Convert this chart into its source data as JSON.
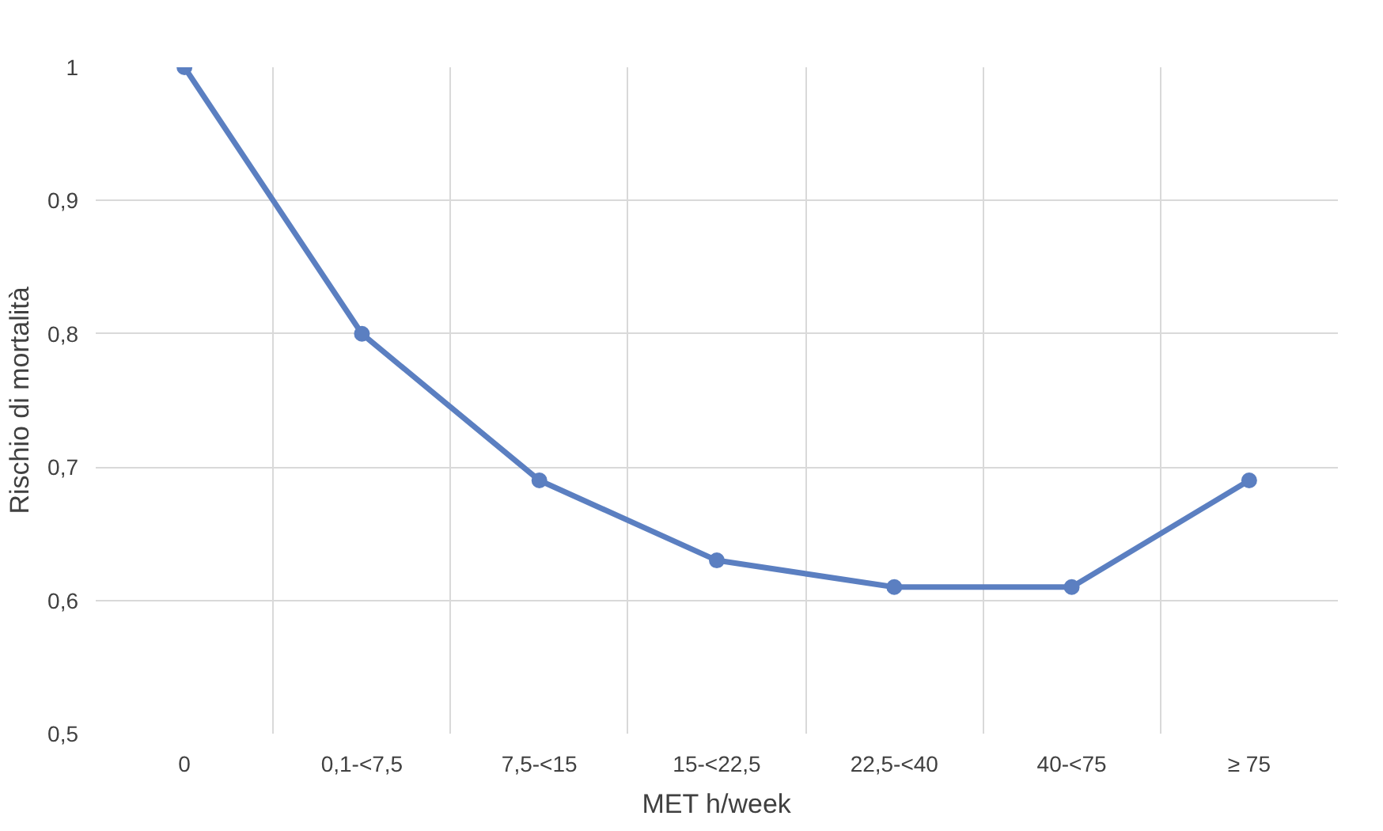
{
  "chart_data": {
    "type": "line",
    "xlabel": "MET h/week",
    "ylabel": "Rischio di mortalità",
    "categories": [
      "0",
      "0,1-<7,5",
      "7,5-<15",
      "15-<22,5",
      "22,5-<40",
      "40-<75",
      "≥ 75"
    ],
    "series": [
      {
        "color": "#5b7fc1",
        "values": [
          1,
          0.8,
          0.69,
          0.63,
          0.61,
          0.61,
          0.69
        ]
      }
    ],
    "ylim": [
      0.5,
      1
    ],
    "yticks": [
      {
        "value": 0.5,
        "label": "0,5"
      },
      {
        "value": 0.6,
        "label": "0,6"
      },
      {
        "value": 0.7,
        "label": "0,7"
      },
      {
        "value": 0.8,
        "label": "0,8"
      },
      {
        "value": 0.9,
        "label": "0,9"
      },
      {
        "value": 1,
        "label": "1"
      }
    ],
    "grid": true,
    "marker": "circle",
    "line_style": "solid"
  }
}
